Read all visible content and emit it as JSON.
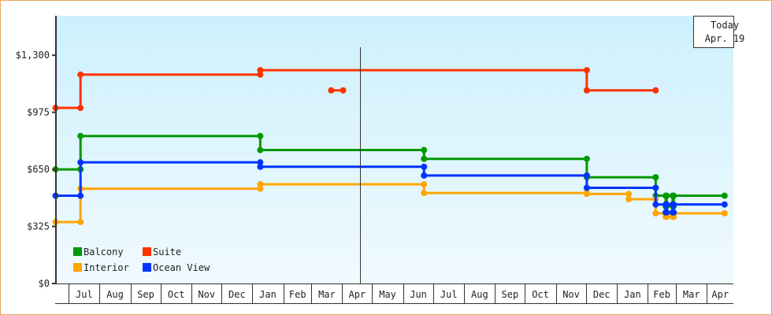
{
  "chart_data": {
    "type": "line",
    "step": true,
    "title": "",
    "xlabel": "",
    "ylabel": "",
    "ylim": [
      0,
      1525
    ],
    "y_ticks": [
      "$0",
      "$325",
      "$650",
      "$975",
      "$1,300"
    ],
    "y_tick_values": [
      0,
      325,
      650,
      975,
      1300
    ],
    "x_first_partial_month": "Jun",
    "x_ticks": [
      "Jul",
      "Aug",
      "Sep",
      "Oct",
      "Nov",
      "Dec",
      "Jan",
      "Feb",
      "Mar",
      "Apr",
      "May",
      "Jun",
      "Jul",
      "Aug",
      "Sep",
      "Oct",
      "Nov",
      "Dec",
      "Jan",
      "Feb",
      "Mar",
      "Apr"
    ],
    "background_gradient": [
      "#cdf0fc",
      "#f0faff"
    ],
    "legend": {
      "placement": "bottom-left"
    },
    "today_marker": {
      "label": "Today",
      "date": "Apr. 19",
      "x": "Apr 19"
    },
    "series": [
      {
        "name": "Balcony",
        "color": "#009900",
        "runs": [
          {
            "steps": [
              [
                "Jun 18",
                650
              ],
              [
                "Jul 13",
                840
              ],
              [
                "Jan 9",
                760
              ],
              [
                "Jun 22",
                710
              ],
              [
                "Dec 2",
                605
              ],
              [
                "Feb 9",
                500
              ],
              [
                "Feb 19",
                440
              ],
              [
                "Feb 20",
                500
              ],
              [
                "Feb 26",
                440
              ],
              [
                "Feb 27",
                500
              ]
            ],
            "end": "Apr 19"
          }
        ]
      },
      {
        "name": "Suite",
        "color": "#ff3300",
        "runs": [
          {
            "steps": [
              [
                "Jun 18",
                1000
              ],
              [
                "Jul 13",
                1190
              ],
              [
                "Jan 9",
                1215
              ],
              [
                "Dec 2",
                1100
              ]
            ],
            "end": "Feb 9"
          },
          {
            "steps": [
              [
                "Mar 21",
                1100
              ]
            ],
            "end": "Apr 2"
          }
        ]
      },
      {
        "name": "Interior",
        "color": "#ffa500",
        "runs": [
          {
            "steps": [
              [
                "Jun 18",
                350
              ],
              [
                "Jul 13",
                540
              ],
              [
                "Jan 9",
                565
              ],
              [
                "Jun 22",
                515
              ],
              [
                "Dec 2",
                510
              ],
              [
                "Jan 13",
                480
              ],
              [
                "Feb 9",
                400
              ],
              [
                "Feb 19",
                380
              ],
              [
                "Feb 20",
                400
              ],
              [
                "Feb 26",
                380
              ],
              [
                "Feb 27",
                400
              ]
            ],
            "end": "Apr 19"
          }
        ]
      },
      {
        "name": "Ocean View",
        "color": "#0033ff",
        "runs": [
          {
            "steps": [
              [
                "Jun 18",
                500
              ],
              [
                "Jul 13",
                690
              ],
              [
                "Jan 9",
                665
              ],
              [
                "Jun 22",
                615
              ],
              [
                "Dec 2",
                545
              ],
              [
                "Feb 9",
                450
              ],
              [
                "Feb 19",
                405
              ],
              [
                "Feb 20",
                450
              ],
              [
                "Feb 26",
                405
              ],
              [
                "Feb 27",
                450
              ]
            ],
            "end": "Apr 19"
          }
        ]
      }
    ]
  }
}
